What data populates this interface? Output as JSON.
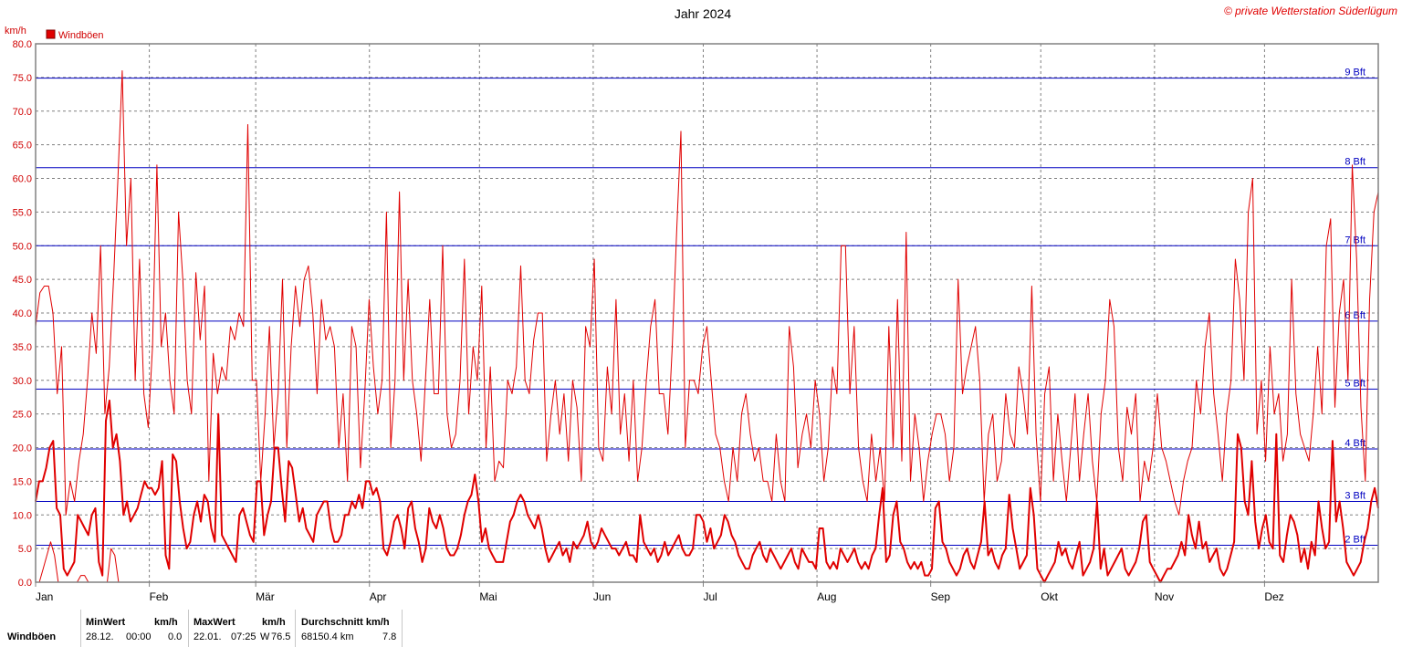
{
  "chart_data": {
    "type": "line",
    "title": "Jahr 2024",
    "copyright": "© private Wetterstation Süderlügum",
    "ylabel": "km/h",
    "ylim": [
      0,
      80
    ],
    "y_ticks": [
      "0.0",
      "5.0",
      "10.0",
      "15.0",
      "20.0",
      "25.0",
      "30.0",
      "35.0",
      "40.0",
      "45.0",
      "50.0",
      "55.0",
      "60.0",
      "65.0",
      "70.0",
      "75.0",
      "80.0"
    ],
    "months": [
      "Jan",
      "Feb",
      "Mär",
      "Apr",
      "Mai",
      "Jun",
      "Jul",
      "Aug",
      "Sep",
      "Okt",
      "Nov",
      "Dez"
    ],
    "month_days": [
      0,
      31,
      60,
      91,
      121,
      152,
      182,
      213,
      244,
      274,
      305,
      335
    ],
    "days_total": 366,
    "grid": true,
    "legend": [
      {
        "name": "Windböen",
        "color": "#e00000",
        "position": "top-left"
      }
    ],
    "beaufort_lines": [
      {
        "label": "2 Bft",
        "value": 5.5
      },
      {
        "label": "3 Bft",
        "value": 12
      },
      {
        "label": "4 Bft",
        "value": 19.8
      },
      {
        "label": "5 Bft",
        "value": 28.7
      },
      {
        "label": "6 Bft",
        "value": 38.8
      },
      {
        "label": "7 Bft",
        "value": 50
      },
      {
        "label": "8 Bft",
        "value": 61.6
      },
      {
        "label": "9 Bft",
        "value": 74.9
      }
    ],
    "series": [
      {
        "name": "Windböen",
        "color": "#e00000",
        "upper": [
          38,
          43,
          44,
          44,
          40,
          28,
          35,
          10,
          15,
          12,
          18,
          22,
          30,
          40,
          34,
          50,
          25,
          32,
          45,
          60,
          76,
          50,
          60,
          30,
          48,
          28,
          23,
          35,
          62,
          35,
          40,
          30,
          25,
          55,
          45,
          30,
          25,
          46,
          36,
          44,
          15,
          34,
          28,
          32,
          30,
          38,
          36,
          40,
          38,
          68,
          30,
          30,
          15,
          25,
          38,
          20,
          28,
          45,
          20,
          35,
          44,
          38,
          45,
          47,
          40,
          28,
          42,
          36,
          38,
          35,
          20,
          28,
          15,
          38,
          35,
          17,
          28,
          42,
          32,
          25,
          30,
          55,
          20,
          30,
          58,
          30,
          45,
          30,
          25,
          18,
          30,
          42,
          28,
          28,
          50,
          25,
          20,
          22,
          30,
          48,
          25,
          35,
          30,
          44,
          20,
          32,
          15,
          18,
          17,
          30,
          28,
          32,
          47,
          30,
          28,
          36,
          40,
          40,
          18,
          25,
          30,
          22,
          28,
          18,
          30,
          26,
          15,
          38,
          35,
          48,
          20,
          18,
          32,
          25,
          42,
          22,
          28,
          18,
          30,
          15,
          20,
          30,
          38,
          42,
          28,
          28,
          22,
          35,
          52,
          67,
          20,
          30,
          30,
          28,
          35,
          38,
          30,
          22,
          20,
          15,
          12,
          20,
          15,
          25,
          28,
          22,
          18,
          20,
          15,
          15,
          12,
          22,
          15,
          12,
          38,
          32,
          17,
          22,
          25,
          20,
          30,
          25,
          15,
          20,
          32,
          28,
          50,
          50,
          28,
          38,
          20,
          15,
          12,
          22,
          15,
          20,
          12,
          38,
          20,
          42,
          18,
          52,
          15,
          25,
          20,
          12,
          18,
          22,
          25,
          25,
          22,
          15,
          20,
          45,
          28,
          32,
          35,
          38,
          30,
          12,
          22,
          25,
          15,
          18,
          28,
          22,
          20,
          32,
          28,
          22,
          44,
          22,
          12,
          28,
          32,
          15,
          25,
          18,
          12,
          20,
          28,
          15,
          22,
          28,
          18,
          12,
          25,
          30,
          42,
          38,
          20,
          15,
          26,
          22,
          28,
          12,
          18,
          15,
          20,
          28,
          20,
          18,
          15,
          12,
          10,
          15,
          18,
          20,
          30,
          25,
          35,
          40,
          28,
          22,
          15,
          25,
          30,
          48,
          42,
          30,
          55,
          60,
          22,
          30,
          18,
          35,
          25,
          28,
          18,
          22,
          45,
          28,
          22,
          20,
          18,
          25,
          35,
          25,
          50,
          54,
          26,
          40,
          45,
          30,
          62,
          48,
          26,
          15,
          42,
          55,
          58
        ],
        "lower": [
          0,
          0,
          2,
          4,
          6,
          4,
          0,
          0,
          0,
          0,
          0,
          0,
          1,
          1,
          0,
          0,
          0,
          0,
          0,
          0,
          5,
          4,
          0,
          0,
          0,
          0,
          0,
          0,
          0,
          0,
          0,
          0,
          0,
          0,
          0,
          0,
          0,
          0,
          0,
          0,
          0,
          0,
          0,
          0,
          0,
          0,
          0,
          0,
          0,
          0,
          0,
          0,
          0,
          0,
          0,
          0,
          0,
          0,
          0,
          0,
          0,
          0,
          0,
          0,
          0,
          0,
          0,
          0,
          0,
          0,
          0,
          0,
          0,
          0,
          0,
          0,
          0,
          0,
          0,
          0,
          0,
          0,
          0,
          0,
          0,
          0,
          0,
          0,
          0,
          0,
          0,
          0,
          0,
          0,
          0,
          0,
          0,
          0,
          0,
          0,
          0,
          0,
          0,
          0,
          0,
          0,
          0,
          0,
          0,
          0,
          0,
          0,
          0,
          0,
          0,
          0,
          0,
          0,
          0,
          0,
          0,
          0,
          0,
          0,
          0,
          0,
          0,
          0,
          0,
          0,
          0,
          0,
          0,
          0,
          0,
          0,
          0,
          0,
          0,
          0,
          0,
          0,
          0,
          0,
          0,
          0,
          0,
          0,
          0,
          0,
          0,
          0,
          0,
          0,
          0,
          0,
          0,
          0,
          0,
          0,
          0,
          0,
          0,
          0,
          0,
          0,
          0,
          0,
          0,
          0,
          0,
          0,
          0,
          0,
          0,
          0,
          0,
          0,
          0,
          0,
          0,
          0,
          0,
          0,
          0,
          0,
          0,
          0,
          0,
          0,
          0,
          0,
          0,
          0,
          0,
          0,
          0,
          0,
          0,
          0,
          0,
          0,
          0,
          0,
          0,
          0,
          0,
          0,
          0,
          0,
          0,
          0,
          0,
          0,
          0,
          0,
          0,
          0,
          0,
          0,
          0,
          0,
          0,
          0,
          0,
          0,
          0,
          0,
          0,
          0,
          0,
          0,
          0,
          0,
          0,
          0,
          0,
          0,
          0,
          0,
          0,
          0,
          0,
          0,
          0,
          0,
          0,
          0,
          0,
          0,
          0,
          0,
          0,
          0,
          0,
          0,
          0,
          0,
          0,
          0,
          0,
          0,
          0,
          0,
          0,
          0,
          0,
          0,
          0,
          0,
          0,
          0,
          0,
          0,
          0,
          0,
          0,
          0,
          0,
          0,
          0,
          0,
          0,
          0,
          0,
          0,
          0,
          0,
          0,
          0,
          0,
          0,
          0,
          0,
          0,
          0,
          0,
          0,
          0,
          0,
          0,
          0,
          0,
          0,
          0,
          0,
          0,
          0,
          0,
          0,
          0,
          0,
          0,
          0,
          0,
          0,
          0,
          0,
          0,
          0,
          0,
          0,
          0,
          0,
          0,
          0,
          0,
          0,
          0,
          0,
          0,
          0,
          0,
          0,
          0,
          0,
          0,
          0,
          0,
          0,
          0,
          0,
          0,
          0,
          0,
          0,
          0,
          0,
          0,
          0,
          0,
          0,
          0,
          0,
          0,
          0,
          0
        ],
        "mean": [
          12,
          15,
          15,
          17,
          20,
          21,
          11,
          10,
          2,
          1,
          2,
          3,
          10,
          9,
          8,
          7,
          10,
          11,
          3,
          1,
          24,
          27,
          20,
          22,
          18,
          10,
          12,
          9,
          10,
          11,
          13,
          15,
          14,
          14,
          13,
          14,
          18,
          4,
          2,
          19,
          18,
          12,
          8,
          5,
          6,
          10,
          12,
          9,
          13,
          12,
          8,
          6,
          25,
          7,
          6,
          5,
          4,
          3,
          10,
          11,
          9,
          7,
          6,
          15,
          15,
          7,
          10,
          12,
          20,
          20,
          14,
          9,
          18,
          17,
          13,
          9,
          11,
          8,
          7,
          6,
          10,
          11,
          12,
          12,
          8,
          6,
          6,
          7,
          10,
          10,
          12,
          11,
          13,
          11,
          15,
          15,
          13,
          14,
          12,
          5,
          4,
          6,
          9,
          10,
          8,
          5,
          11,
          12,
          8,
          6,
          3,
          5,
          11,
          9,
          8,
          10,
          8,
          5,
          4,
          4,
          5,
          7,
          10,
          12,
          13,
          16,
          12,
          6,
          8,
          5,
          4,
          3,
          3,
          3,
          6,
          9,
          10,
          12,
          13,
          12,
          10,
          9,
          8,
          10,
          8,
          5,
          3,
          4,
          5,
          6,
          4,
          5,
          3,
          6,
          5,
          6,
          7,
          9,
          6,
          5,
          6,
          8,
          7,
          6,
          5,
          5,
          4,
          5,
          6,
          4,
          4,
          3,
          10,
          6,
          5,
          4,
          5,
          3,
          4,
          6,
          4,
          5,
          6,
          7,
          5,
          4,
          4,
          5,
          10,
          10,
          9,
          6,
          8,
          5,
          6,
          7,
          10,
          9,
          7,
          6,
          4,
          3,
          2,
          2,
          4,
          5,
          6,
          4,
          3,
          5,
          4,
          3,
          2,
          3,
          4,
          5,
          3,
          2,
          5,
          4,
          3,
          3,
          2,
          8,
          8,
          3,
          2,
          3,
          2,
          5,
          4,
          3,
          4,
          5,
          3,
          2,
          3,
          2,
          4,
          5,
          10,
          14,
          3,
          4,
          10,
          12,
          6,
          5,
          3,
          2,
          3,
          2,
          3,
          1,
          1,
          2,
          11,
          12,
          6,
          5,
          3,
          2,
          1,
          2,
          4,
          5,
          3,
          2,
          4,
          6,
          12,
          4,
          5,
          3,
          2,
          4,
          5,
          13,
          8,
          5,
          2,
          3,
          4,
          14,
          10,
          2,
          1,
          0,
          1,
          2,
          3,
          6,
          4,
          5,
          3,
          2,
          4,
          6,
          1,
          2,
          3,
          5,
          12,
          2,
          5,
          1,
          2,
          3,
          4,
          5,
          2,
          1,
          2,
          3,
          5,
          9,
          10,
          3,
          2,
          1,
          0,
          1,
          2,
          2,
          3,
          4,
          6,
          4,
          10,
          7,
          5,
          9,
          5,
          6,
          3,
          4,
          5,
          2,
          1,
          2,
          4,
          6,
          22,
          20,
          12,
          10,
          18,
          9,
          5,
          8,
          10,
          6,
          5,
          22,
          4,
          3,
          7,
          10,
          9,
          7,
          3,
          5,
          2,
          6,
          4,
          12,
          8,
          5,
          6,
          21,
          9,
          12,
          8,
          3,
          2,
          1,
          2,
          3,
          6,
          8,
          12,
          14,
          11
        ],
        "min_label": "MinWert",
        "min_date": "28.12.",
        "min_time": "00:00",
        "min_value": "0.0",
        "max_label": "MaxWert",
        "max_date": "22.01.",
        "max_time": "07:25",
        "max_dir": "W",
        "max_value": "76.5",
        "avg_label": "Durchschnitt km/h",
        "avg_distance": "68150.4 km",
        "avg_value": "7.8",
        "unit": "km/h"
      }
    ]
  }
}
